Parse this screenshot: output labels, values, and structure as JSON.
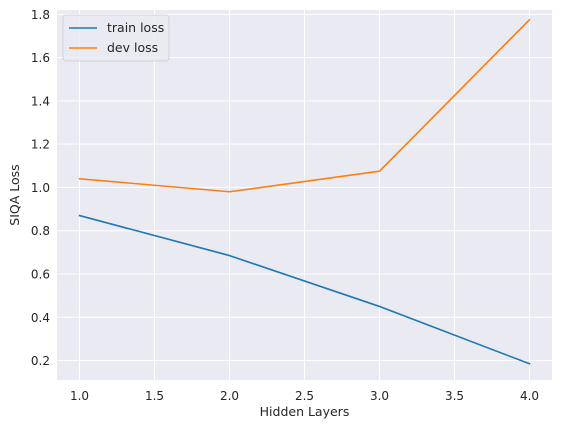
{
  "chart_data": {
    "type": "line",
    "title": "",
    "xlabel": "Hidden Layers",
    "ylabel": "SIQA Loss",
    "x": [
      1.0,
      2.0,
      3.0,
      4.0
    ],
    "xlim": [
      0.85,
      4.15
    ],
    "ylim": [
      0.11,
      1.82
    ],
    "xticks": [
      1.0,
      1.5,
      2.0,
      2.5,
      3.0,
      3.5,
      4.0
    ],
    "xtick_labels": [
      "1.0",
      "1.5",
      "2.0",
      "2.5",
      "3.0",
      "3.5",
      "4.0"
    ],
    "yticks": [
      0.2,
      0.4,
      0.6,
      0.8,
      1.0,
      1.2,
      1.4,
      1.6,
      1.8
    ],
    "ytick_labels": [
      "0.2",
      "0.4",
      "0.6",
      "0.8",
      "1.0",
      "1.2",
      "1.4",
      "1.6",
      "1.8"
    ],
    "grid": true,
    "legend_position": "top-left",
    "series": [
      {
        "name": "train loss",
        "color": "#1f77b4",
        "values": [
          0.87,
          0.685,
          0.45,
          0.185
        ]
      },
      {
        "name": "dev loss",
        "color": "#ff7f0e",
        "values": [
          1.04,
          0.98,
          1.075,
          1.775
        ]
      }
    ]
  }
}
